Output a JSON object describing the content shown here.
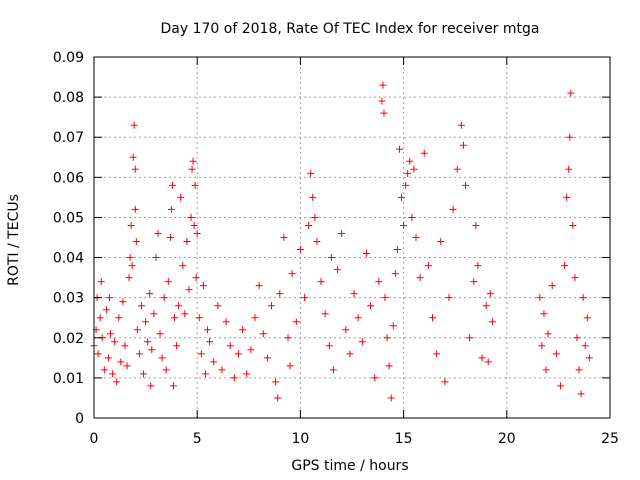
{
  "chart_data": {
    "type": "scatter",
    "title": "Day 170 of 2018, Rate Of TEC Index for receiver mtga",
    "xlabel": "GPS time / hours",
    "ylabel": "ROTI / TECUs",
    "xlim": [
      0,
      25
    ],
    "ylim": [
      0,
      0.09
    ],
    "xticks": [
      "0",
      "5",
      "10",
      "15",
      "20",
      "25"
    ],
    "yticks": [
      "0",
      "0.01",
      "0.02",
      "0.03",
      "0.04",
      "0.05",
      "0.06",
      "0.07",
      "0.08",
      "0.09"
    ],
    "grid": true,
    "marker": "+",
    "color": "#ff0000",
    "series": [
      {
        "x": [
          0.0,
          0.1,
          0.15,
          0.2,
          0.3,
          0.35,
          0.4,
          0.5,
          0.6,
          0.7,
          0.75,
          0.8,
          0.9,
          1.0,
          1.1,
          1.2,
          1.3,
          1.4,
          1.5,
          1.6,
          1.7,
          1.75,
          1.8,
          1.85,
          1.9,
          1.95,
          2.0,
          2.0,
          2.05,
          2.1,
          2.2,
          2.3,
          2.4,
          2.5,
          2.6,
          2.7,
          2.75,
          2.8,
          2.9,
          3.0,
          3.1,
          3.2,
          3.3,
          3.4,
          3.5,
          3.6,
          3.7,
          3.75,
          3.8,
          3.85,
          3.9,
          4.0,
          4.1,
          4.2,
          4.3,
          4.4,
          4.5,
          4.6,
          4.7,
          4.75,
          4.8,
          4.85,
          4.9,
          4.95,
          5.0,
          5.1,
          5.2,
          5.3,
          5.4,
          5.5,
          5.6,
          5.8,
          6.0,
          6.2,
          6.4,
          6.6,
          6.8,
          7.0,
          7.2,
          7.4,
          7.6,
          7.8,
          8.0,
          8.2,
          8.4,
          8.6,
          8.8,
          8.9,
          9.0,
          9.2,
          9.4,
          9.5,
          9.6,
          9.8,
          10.0,
          10.2,
          10.4,
          10.5,
          10.6,
          10.7,
          10.8,
          11.0,
          11.2,
          11.4,
          11.5,
          11.6,
          11.8,
          12.0,
          12.2,
          12.4,
          12.6,
          12.8,
          13.0,
          13.2,
          13.4,
          13.6,
          13.8,
          13.95,
          14.0,
          14.05,
          14.1,
          14.2,
          14.3,
          14.4,
          14.5,
          14.6,
          14.7,
          14.8,
          14.9,
          15.0,
          15.1,
          15.2,
          15.3,
          15.4,
          15.5,
          15.6,
          15.8,
          16.0,
          16.2,
          16.4,
          16.6,
          16.8,
          17.0,
          17.2,
          17.4,
          17.6,
          17.8,
          17.9,
          18.0,
          18.2,
          18.4,
          18.5,
          18.6,
          18.8,
          19.0,
          19.1,
          19.2,
          19.3,
          21.6,
          21.7,
          21.8,
          21.9,
          22.0,
          22.2,
          22.4,
          22.6,
          22.8,
          22.9,
          23.0,
          23.05,
          23.1,
          23.2,
          23.3,
          23.4,
          23.5,
          23.6,
          23.7,
          23.8,
          23.9,
          24.0
        ],
        "y": [
          0.018,
          0.022,
          0.03,
          0.016,
          0.025,
          0.034,
          0.02,
          0.012,
          0.027,
          0.015,
          0.03,
          0.021,
          0.011,
          0.019,
          0.009,
          0.025,
          0.014,
          0.029,
          0.018,
          0.013,
          0.035,
          0.04,
          0.048,
          0.038,
          0.065,
          0.073,
          0.052,
          0.062,
          0.044,
          0.022,
          0.016,
          0.028,
          0.011,
          0.024,
          0.019,
          0.031,
          0.008,
          0.017,
          0.026,
          0.04,
          0.046,
          0.021,
          0.015,
          0.03,
          0.012,
          0.034,
          0.045,
          0.052,
          0.058,
          0.008,
          0.025,
          0.018,
          0.028,
          0.055,
          0.038,
          0.026,
          0.044,
          0.032,
          0.05,
          0.062,
          0.064,
          0.048,
          0.058,
          0.035,
          0.046,
          0.025,
          0.016,
          0.033,
          0.011,
          0.022,
          0.019,
          0.014,
          0.028,
          0.012,
          0.024,
          0.018,
          0.01,
          0.016,
          0.022,
          0.011,
          0.017,
          0.025,
          0.033,
          0.021,
          0.015,
          0.028,
          0.009,
          0.005,
          0.031,
          0.045,
          0.02,
          0.013,
          0.036,
          0.024,
          0.042,
          0.03,
          0.048,
          0.061,
          0.055,
          0.05,
          0.044,
          0.034,
          0.026,
          0.018,
          0.04,
          0.012,
          0.037,
          0.046,
          0.022,
          0.016,
          0.031,
          0.025,
          0.019,
          0.041,
          0.028,
          0.01,
          0.034,
          0.079,
          0.083,
          0.076,
          0.03,
          0.02,
          0.013,
          0.005,
          0.023,
          0.036,
          0.042,
          0.067,
          0.055,
          0.048,
          0.058,
          0.061,
          0.064,
          0.05,
          0.062,
          0.045,
          0.035,
          0.066,
          0.038,
          0.025,
          0.016,
          0.044,
          0.009,
          0.03,
          0.052,
          0.062,
          0.073,
          0.068,
          0.058,
          0.02,
          0.034,
          0.048,
          0.038,
          0.015,
          0.028,
          0.014,
          0.031,
          0.024,
          0.03,
          0.018,
          0.026,
          0.012,
          0.021,
          0.033,
          0.016,
          0.008,
          0.038,
          0.055,
          0.062,
          0.07,
          0.081,
          0.048,
          0.035,
          0.02,
          0.012,
          0.006,
          0.03,
          0.018,
          0.025,
          0.015
        ]
      }
    ]
  }
}
